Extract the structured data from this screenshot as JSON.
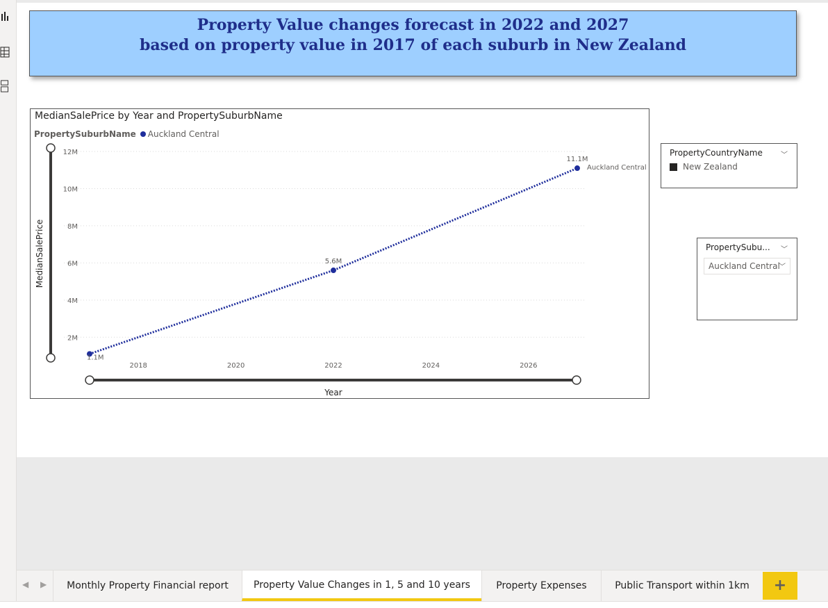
{
  "report": {
    "title_line1": "Property Value changes forecast in 2022 and 2027",
    "title_line2": "based on property value in 2017 of each suburb in New Zealand"
  },
  "left_rail": {
    "icons": [
      "report-view-icon",
      "data-view-icon",
      "model-view-icon"
    ]
  },
  "chart": {
    "header": "MedianSalePrice by Year and PropertySuburbName",
    "legend_title": "PropertySuburbName",
    "legend_item": "Auckland Central"
  },
  "chart_data": {
    "type": "line",
    "title": "MedianSalePrice by Year and PropertySuburbName",
    "xlabel": "Year",
    "ylabel": "MedianSalePrice",
    "x_ticks": [
      "2018",
      "2020",
      "2022",
      "2024",
      "2026"
    ],
    "y_ticks": [
      "2M",
      "4M",
      "6M",
      "8M",
      "10M",
      "12M"
    ],
    "xlim": [
      2017,
      2027
    ],
    "ylim": [
      1,
      12
    ],
    "grid": true,
    "series": [
      {
        "name": "Auckland Central",
        "color": "#1f2e9c",
        "x": [
          2017,
          2022,
          2027
        ],
        "y": [
          1.1,
          5.6,
          11.1
        ],
        "labels": [
          "1.1M",
          "5.6M",
          "11.1M"
        ]
      }
    ]
  },
  "slicers": {
    "country": {
      "header": "PropertyCountryName",
      "item": "New Zealand"
    },
    "suburb": {
      "header": "PropertySubu...",
      "selected": "Auckland Central"
    }
  },
  "tabs": {
    "items": [
      {
        "label": "Monthly Property Financial report",
        "active": false
      },
      {
        "label": "Property Value Changes in 1, 5 and 10 years",
        "active": true
      },
      {
        "label": "Property Expenses",
        "active": false
      },
      {
        "label": "Public Transport within 1km",
        "active": false
      }
    ],
    "add_label": "+",
    "prev_arrow": "◀",
    "next_arrow": "▶"
  },
  "colors": {
    "accent": "#f2c811",
    "title_bg": "#9ecfff",
    "title_text": "#1f2e8a",
    "series": "#1f2e9c"
  }
}
